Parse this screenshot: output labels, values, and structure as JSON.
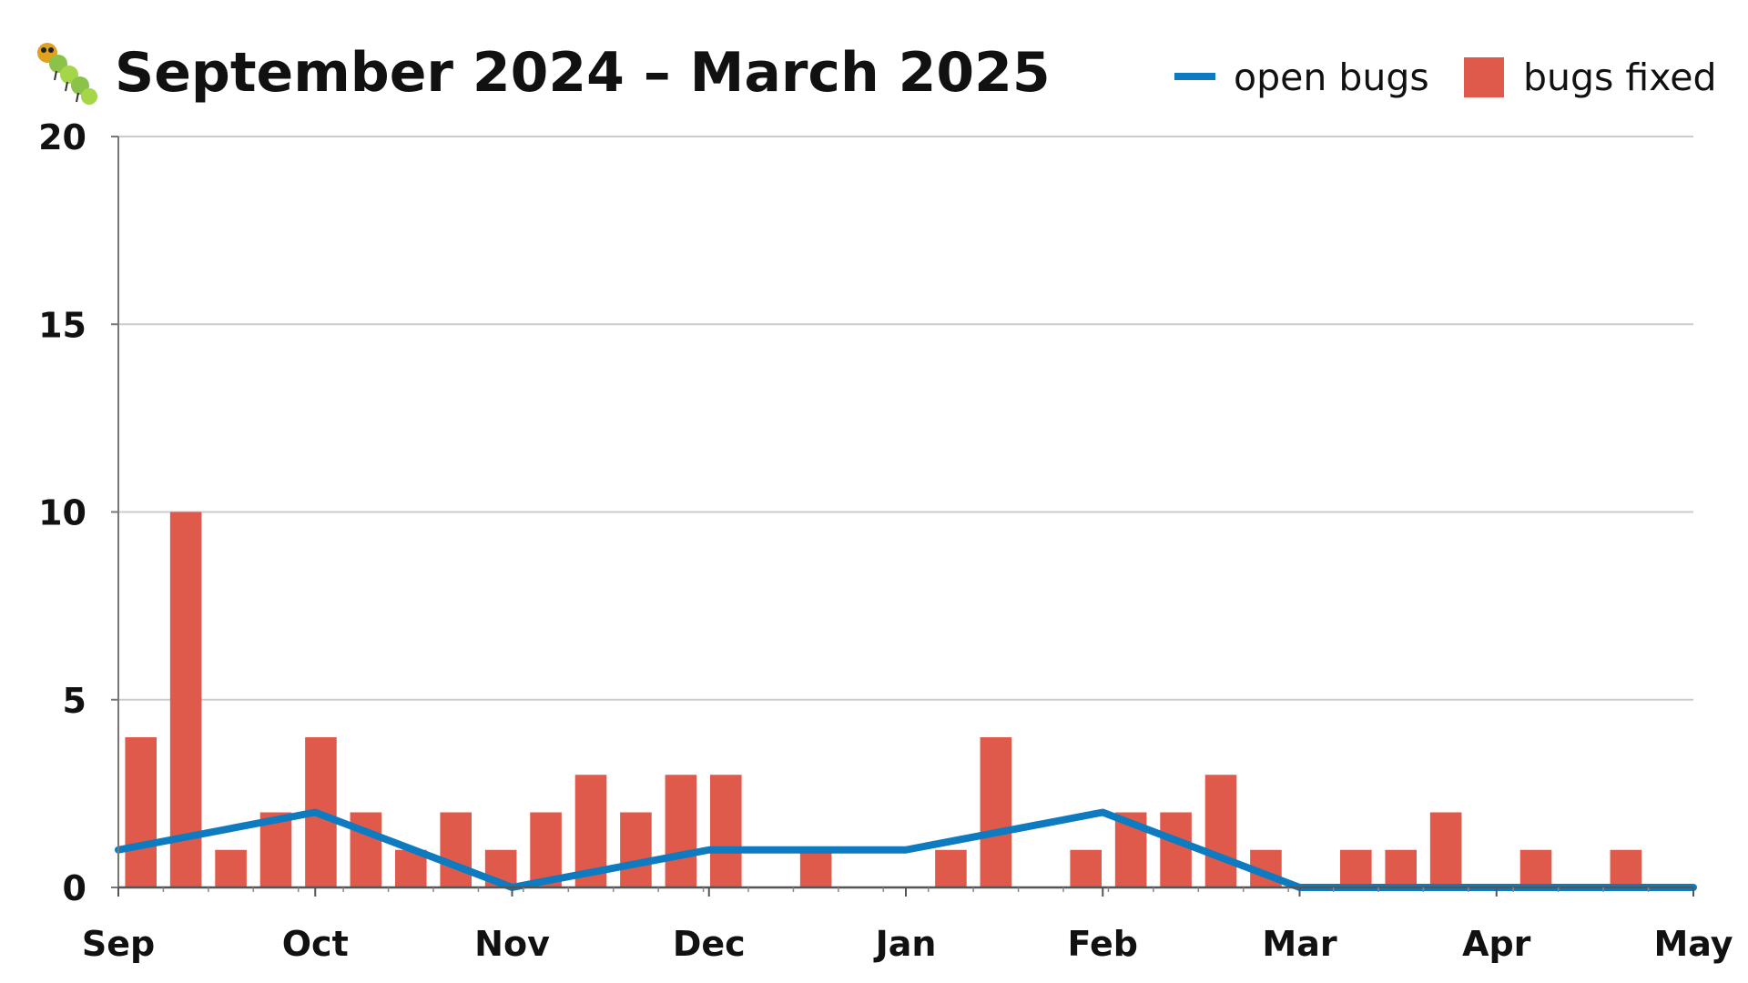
{
  "chart_data": {
    "type": "bar",
    "title": "September 2024 – March 2025",
    "title_icon": "caterpillar-icon",
    "xlabel": "",
    "ylabel": "",
    "ylim": [
      0,
      20
    ],
    "yticks": [
      "0",
      "5",
      "10",
      "15",
      "20"
    ],
    "xticks": [
      "Sep",
      "Oct",
      "Nov",
      "Dec",
      "Jan",
      "Feb",
      "Mar",
      "Apr",
      "May"
    ],
    "grid": true,
    "legend_position": "top-right",
    "colors": {
      "open_bugs": "#0e7bc0",
      "bugs_fixed": "#e05a4b"
    },
    "series": [
      {
        "name": "open bugs",
        "type": "line",
        "points": [
          {
            "x": "Sep",
            "y": 1
          },
          {
            "x": "Oct",
            "y": 2
          },
          {
            "x": "Nov",
            "y": 0
          },
          {
            "x": "Dec",
            "y": 1
          },
          {
            "x": "Jan",
            "y": 1
          },
          {
            "x": "Feb",
            "y": 2
          },
          {
            "x": "Mar",
            "y": 0
          },
          {
            "x": "Apr",
            "y": 0
          },
          {
            "x": "May",
            "y": 0
          }
        ]
      },
      {
        "name": "bugs fixed",
        "type": "bar",
        "values": [
          4,
          10,
          1,
          2,
          4,
          2,
          1,
          2,
          1,
          2,
          3,
          2,
          3,
          3,
          0,
          1,
          0,
          0,
          1,
          4,
          0,
          1,
          2,
          2,
          3,
          1,
          0,
          1,
          1,
          2,
          0,
          1,
          0,
          1,
          0
        ]
      }
    ]
  }
}
